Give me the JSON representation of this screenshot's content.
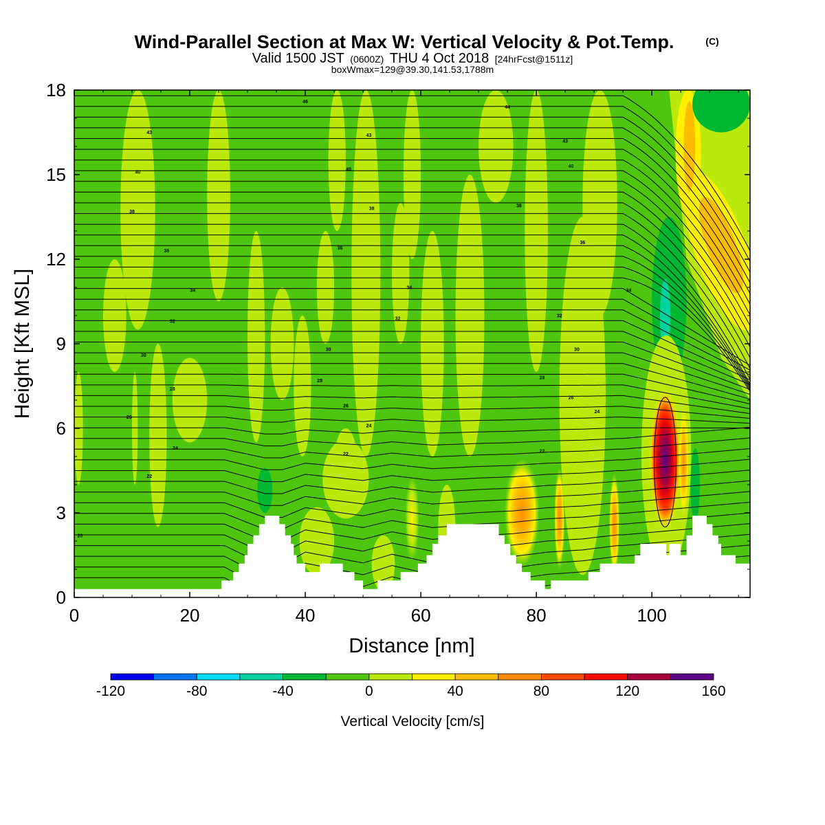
{
  "title": "Wind-Parallel Section at Max W: Vertical Velocity & Pot.Temp.",
  "copyright": "(C)",
  "subtitle_main": "Valid 1500 JST",
  "subtitle_zulu": "(0600Z)",
  "subtitle_date": "THU 4 Oct 2018",
  "subtitle_forecast": "[24hrFcst@1511z]",
  "box_info": "boxWmax=129@39.30,141.53,1788m",
  "chart_data": {
    "type": "heatmap",
    "xlabel": "Distance [nm]",
    "ylabel": "Height [Kft MSL]",
    "xlim": [
      0,
      117
    ],
    "ylim": [
      0,
      18
    ],
    "x_ticks": [
      0,
      20,
      40,
      60,
      80,
      100
    ],
    "y_ticks": [
      0,
      3,
      6,
      9,
      12,
      15,
      18
    ],
    "colorbar": {
      "label": "Vertical Velocity [cm/s]",
      "levels": [
        -120,
        -100,
        -80,
        -60,
        -40,
        -20,
        0,
        20,
        40,
        60,
        80,
        100,
        120,
        140,
        160
      ],
      "colors": [
        "#0000ee",
        "#0077f2",
        "#00dcf7",
        "#00d2a0",
        "#00b732",
        "#4ec60f",
        "#bce90c",
        "#fef000",
        "#fcbd00",
        "#fd8c00",
        "#ff4a00",
        "#f50b00",
        "#a8003c",
        "#5a0286"
      ],
      "tick_labels": [
        "-120",
        "-80",
        "-40",
        "0",
        "40",
        "80",
        "120",
        "160"
      ],
      "tick_values": [
        -120,
        -80,
        -40,
        0,
        40,
        80,
        120,
        160
      ]
    },
    "terrain_kft": [
      [
        0,
        0.3
      ],
      [
        25.5,
        0.3
      ],
      [
        25.5,
        0.6
      ],
      [
        27.5,
        0.6
      ],
      [
        27.5,
        0.9
      ],
      [
        28.5,
        0.9
      ],
      [
        28.5,
        1.2
      ],
      [
        29.5,
        1.2
      ],
      [
        29.5,
        1.5
      ],
      [
        30,
        1.5
      ],
      [
        30,
        1.9
      ],
      [
        31,
        1.9
      ],
      [
        31,
        2.2
      ],
      [
        32,
        2.2
      ],
      [
        32,
        2.6
      ],
      [
        33,
        2.6
      ],
      [
        33,
        2.9
      ],
      [
        35.5,
        2.9
      ],
      [
        35.5,
        2.6
      ],
      [
        36.5,
        2.6
      ],
      [
        36.5,
        2.2
      ],
      [
        37.5,
        2.2
      ],
      [
        37.5,
        1.9
      ],
      [
        38,
        1.9
      ],
      [
        38,
        1.5
      ],
      [
        38.5,
        1.5
      ],
      [
        38.5,
        1.2
      ],
      [
        40,
        1.2
      ],
      [
        40,
        0.9
      ],
      [
        42.5,
        0.9
      ],
      [
        42.5,
        1.2
      ],
      [
        46.5,
        1.2
      ],
      [
        46.5,
        0.9
      ],
      [
        48.5,
        0.9
      ],
      [
        48.5,
        0.6
      ],
      [
        50,
        0.6
      ],
      [
        50,
        0.3
      ],
      [
        52.5,
        0.3
      ],
      [
        52.5,
        0.6
      ],
      [
        56.5,
        0.6
      ],
      [
        56.5,
        0.9
      ],
      [
        59.5,
        0.9
      ],
      [
        59.5,
        1.2
      ],
      [
        61,
        1.2
      ],
      [
        61,
        1.5
      ],
      [
        62,
        1.5
      ],
      [
        62,
        1.9
      ],
      [
        63,
        1.9
      ],
      [
        63,
        2.2
      ],
      [
        64.5,
        2.2
      ],
      [
        64.5,
        2.6
      ],
      [
        73.5,
        2.6
      ],
      [
        73.5,
        2.2
      ],
      [
        74.5,
        2.2
      ],
      [
        74.5,
        1.9
      ],
      [
        75.5,
        1.9
      ],
      [
        75.5,
        1.5
      ],
      [
        76.5,
        1.5
      ],
      [
        76.5,
        1.2
      ],
      [
        77.5,
        1.2
      ],
      [
        77.5,
        0.9
      ],
      [
        79,
        0.9
      ],
      [
        79,
        0.6
      ],
      [
        81.5,
        0.6
      ],
      [
        81.5,
        0.3
      ],
      [
        82.5,
        0.3
      ],
      [
        82.5,
        0.6
      ],
      [
        89,
        0.6
      ],
      [
        89,
        0.9
      ],
      [
        91,
        0.9
      ],
      [
        91,
        1.2
      ],
      [
        97,
        1.2
      ],
      [
        97,
        1.5
      ],
      [
        98,
        1.5
      ],
      [
        98,
        1.9
      ],
      [
        102.5,
        1.9
      ],
      [
        102.5,
        1.5
      ],
      [
        103,
        1.5
      ],
      [
        103,
        1.9
      ],
      [
        105,
        1.9
      ],
      [
        105,
        1.5
      ],
      [
        106,
        1.5
      ],
      [
        106,
        2.2
      ],
      [
        107,
        2.2
      ],
      [
        107,
        2.9
      ],
      [
        109.5,
        2.9
      ],
      [
        109.5,
        2.6
      ],
      [
        110.5,
        2.6
      ],
      [
        110.5,
        2.2
      ],
      [
        111.5,
        2.2
      ],
      [
        111.5,
        1.9
      ],
      [
        112,
        1.9
      ],
      [
        112,
        1.5
      ],
      [
        114.5,
        1.5
      ],
      [
        114.5,
        1.2
      ],
      [
        117,
        1.2
      ]
    ],
    "theta_label_values": [
      "46",
      "44",
      "43",
      "42",
      "40",
      "38",
      "36",
      "34",
      "32",
      "30",
      "28",
      "26",
      "24",
      "22",
      "20"
    ]
  }
}
